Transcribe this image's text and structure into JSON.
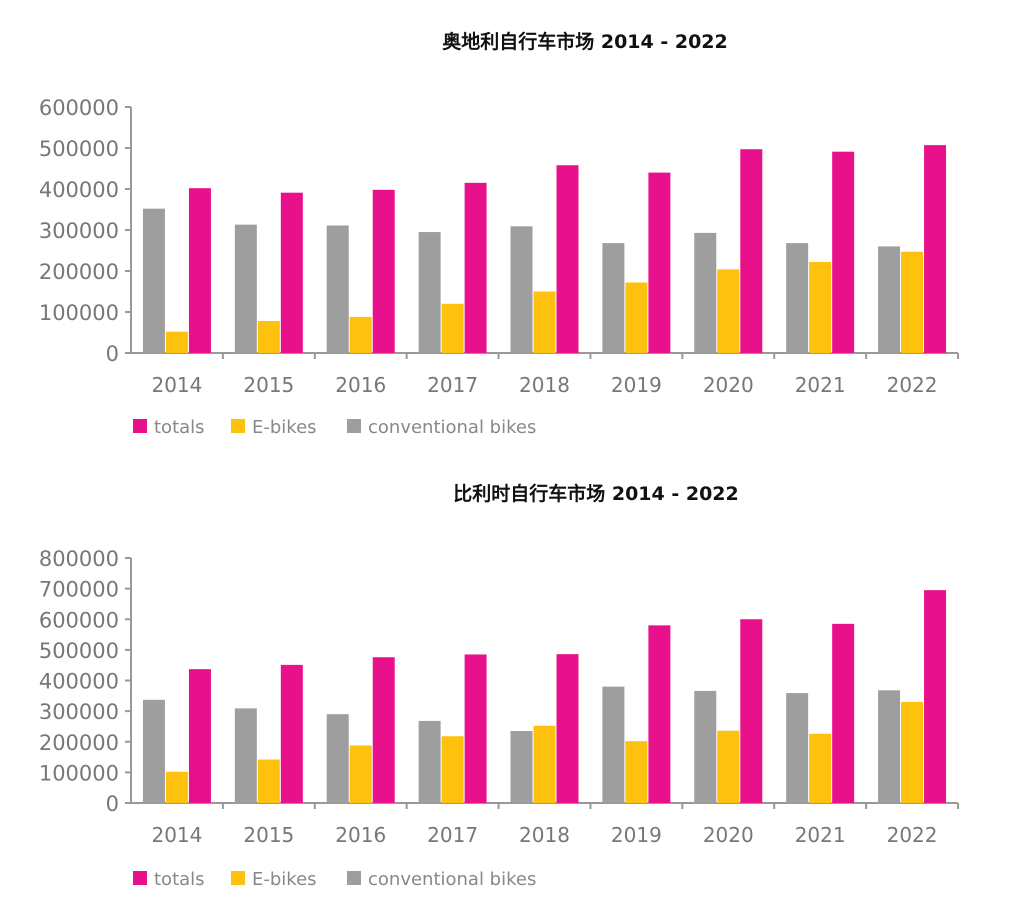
{
  "colors": {
    "totals": "#e8118b",
    "ebikes": "#fec20e",
    "conventional": "#9e9e9e"
  },
  "chart_data": [
    {
      "type": "bar",
      "title": "奥地利自行车市场   2014 - 2022",
      "categories": [
        "2014",
        "2015",
        "2016",
        "2017",
        "2018",
        "2019",
        "2020",
        "2021",
        "2022"
      ],
      "ylim": [
        0,
        600000
      ],
      "yticks": [
        "0",
        "100000",
        "200000",
        "300000",
        "400000",
        "500000",
        "600000"
      ],
      "series": [
        {
          "name": "conventional bikes",
          "key": "conventional",
          "values": [
            352000,
            313000,
            311000,
            295000,
            309000,
            268000,
            293000,
            268000,
            260000
          ]
        },
        {
          "name": "E-bikes",
          "key": "ebikes",
          "values": [
            52000,
            78000,
            88000,
            120000,
            150000,
            172000,
            204000,
            222000,
            247000
          ]
        },
        {
          "name": "totals",
          "key": "totals",
          "values": [
            402000,
            391000,
            398000,
            415000,
            458000,
            440000,
            497000,
            491000,
            507000
          ]
        }
      ],
      "legend": [
        "totals",
        "E-bikes",
        "conventional bikes"
      ]
    },
    {
      "type": "bar",
      "title": "比利时自行车市场  2014 - 2022",
      "categories": [
        "2014",
        "2015",
        "2016",
        "2017",
        "2018",
        "2019",
        "2020",
        "2021",
        "2022"
      ],
      "ylim": [
        0,
        800000
      ],
      "yticks": [
        "0",
        "100000",
        "200000",
        "300000",
        "400000",
        "500000",
        "600000",
        "700000",
        "800000"
      ],
      "series": [
        {
          "name": "conventional bikes",
          "key": "conventional",
          "values": [
            337000,
            309000,
            290000,
            268000,
            235000,
            380000,
            366000,
            359000,
            368000
          ]
        },
        {
          "name": "E-bikes",
          "key": "ebikes",
          "values": [
            102000,
            142000,
            188000,
            218000,
            252000,
            202000,
            236000,
            226000,
            330000
          ]
        },
        {
          "name": "totals",
          "key": "totals",
          "values": [
            437000,
            451000,
            476000,
            485000,
            486000,
            580000,
            600000,
            585000,
            695000
          ]
        }
      ],
      "legend": [
        "totals",
        "E-bikes",
        "conventional bikes"
      ]
    }
  ]
}
